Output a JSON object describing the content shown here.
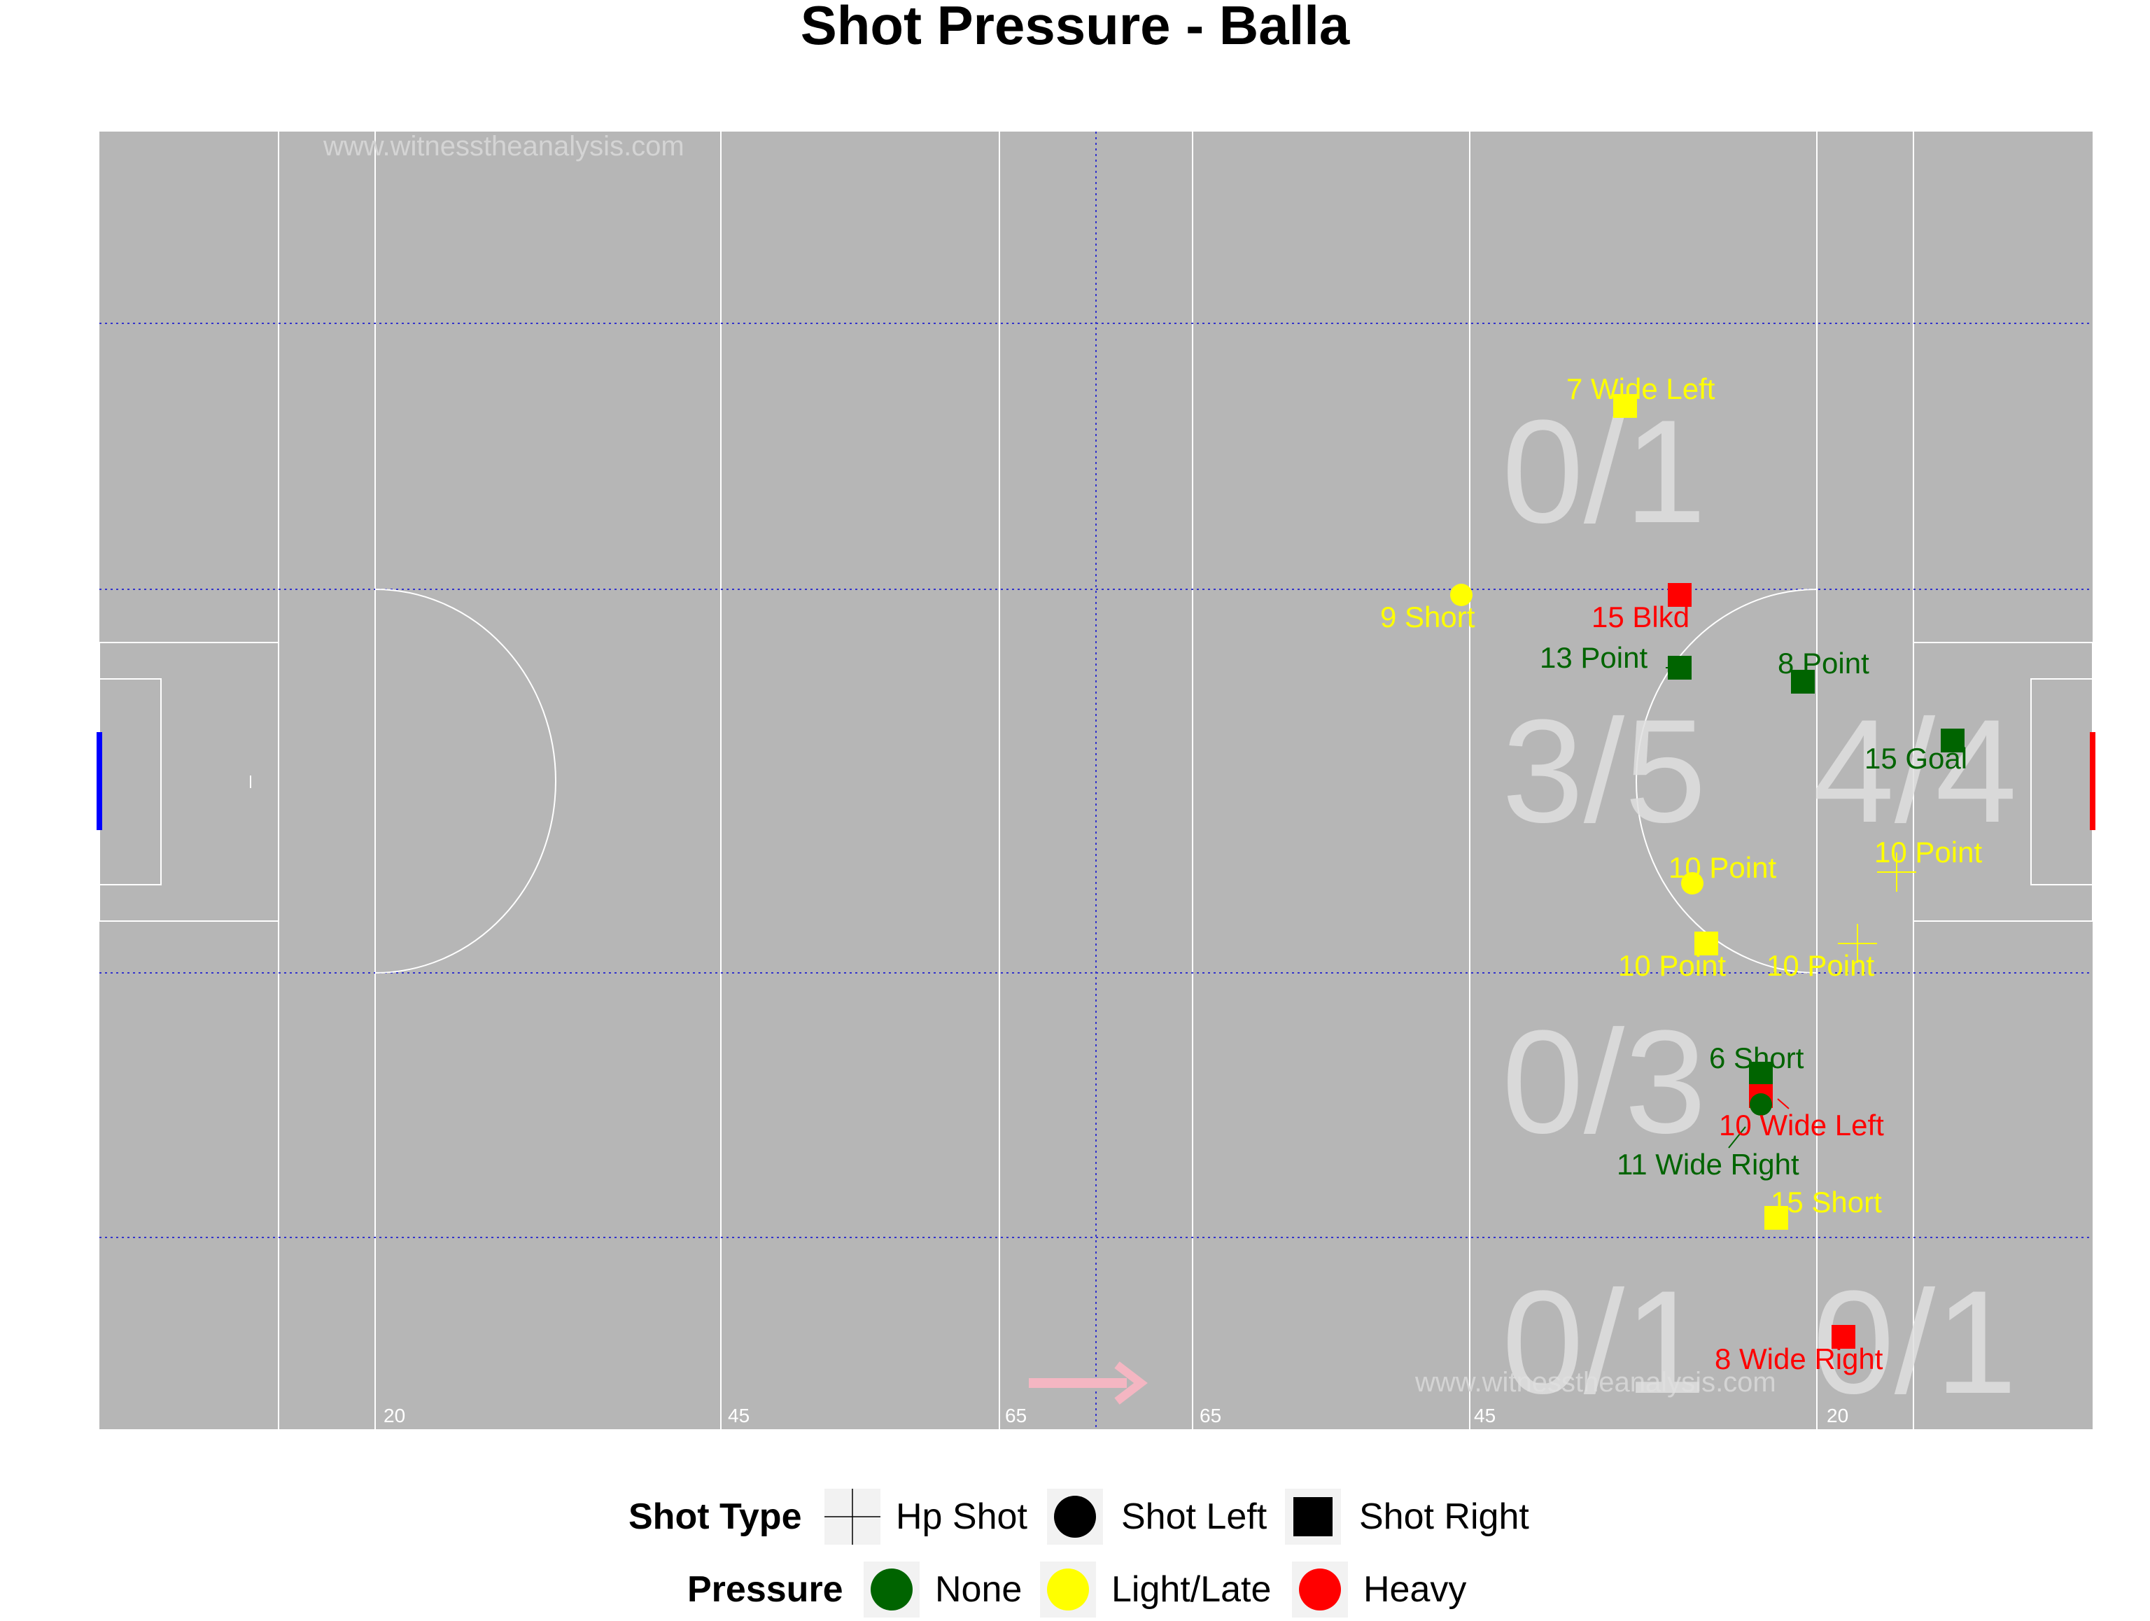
{
  "title": "Shot Pressure - Balla",
  "watermark": "www.witnesstheanalysis.com",
  "colors": {
    "pitch": "#b6b6b6",
    "lines": "#ffffff",
    "zone_dividers": "#3333cc",
    "none": "#006400",
    "light_late": "#ffff00",
    "heavy": "#ff0000",
    "zone_label": "#e0e0e0",
    "left_goal": "#0000ff",
    "right_goal": "#ff0000",
    "direction_arrow": "#f4b6c2"
  },
  "pitch_markings": [
    "20",
    "45",
    "65",
    "65",
    "45",
    "20"
  ],
  "zone_stats": [
    "0/1",
    "3/5",
    "4/4",
    "0/3",
    "0/1",
    "0/1"
  ],
  "chart_data": {
    "type": "scatter",
    "title": "Shot Pressure - Balla",
    "shots": [
      {
        "minute": 7,
        "outcome": "Wide Left",
        "shot_type": "Shot Right",
        "pressure": "Light/Late"
      },
      {
        "minute": 9,
        "outcome": "Short",
        "shot_type": "Shot Left",
        "pressure": "Light/Late"
      },
      {
        "minute": 15,
        "outcome": "Blkd",
        "shot_type": "Shot Right",
        "pressure": "Heavy"
      },
      {
        "minute": 13,
        "outcome": "Point",
        "shot_type": "Shot Right",
        "pressure": "None"
      },
      {
        "minute": 8,
        "outcome": "Point",
        "shot_type": "Shot Right",
        "pressure": "None"
      },
      {
        "minute": 15,
        "outcome": "Goal",
        "shot_type": "Shot Right",
        "pressure": "None"
      },
      {
        "minute": 10,
        "outcome": "Point",
        "shot_type": "Hp Shot",
        "pressure": "Light/Late"
      },
      {
        "minute": 10,
        "outcome": "Point",
        "shot_type": "Shot Left",
        "pressure": "Light/Late"
      },
      {
        "minute": 10,
        "outcome": "Point",
        "shot_type": "Shot Right",
        "pressure": "Light/Late"
      },
      {
        "minute": 10,
        "outcome": "Point",
        "shot_type": "Hp Shot",
        "pressure": "Light/Late"
      },
      {
        "minute": 6,
        "outcome": "Short",
        "shot_type": "Shot Right",
        "pressure": "None"
      },
      {
        "minute": 10,
        "outcome": "Wide Left",
        "shot_type": "Shot Right",
        "pressure": "Heavy"
      },
      {
        "minute": 11,
        "outcome": "Wide Right",
        "shot_type": "Shot Left",
        "pressure": "None"
      },
      {
        "minute": 15,
        "outcome": "Short",
        "shot_type": "Shot Right",
        "pressure": "Light/Late"
      },
      {
        "minute": 8,
        "outcome": "Wide Right",
        "shot_type": "Shot Right",
        "pressure": "Heavy"
      }
    ],
    "legend": {
      "shot_type": {
        "title": "Shot Type",
        "items": [
          "Hp Shot",
          "Shot Left",
          "Shot Right"
        ]
      },
      "pressure": {
        "title": "Pressure",
        "items": [
          "None",
          "Light/Late",
          "Heavy"
        ]
      },
      "placement": "bottom"
    }
  }
}
